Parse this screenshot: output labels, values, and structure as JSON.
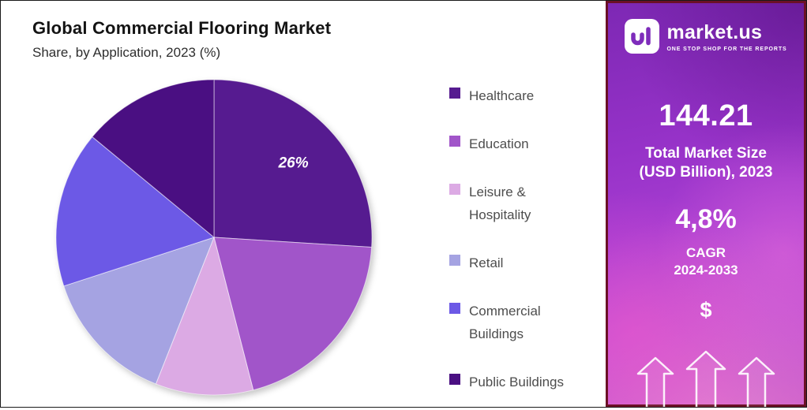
{
  "header": {
    "title": "Global Commercial Flooring Market",
    "subtitle": "Share, by Application, 2023 (%)"
  },
  "chart_data": {
    "type": "pie",
    "title": "Global Commercial Flooring Market",
    "subtitle": "Share, by Application, 2023 (%)",
    "labels": [
      "Healthcare",
      "Education",
      "Leisure & Hospitality",
      "Retail",
      "Commercial Buildings",
      "Public Buildings"
    ],
    "values": [
      26,
      20,
      10,
      14,
      16,
      14
    ],
    "colors": [
      "#561b90",
      "#a155c9",
      "#dcaae4",
      "#a5a3e2",
      "#6c59e6",
      "#4a0f82"
    ],
    "data_label": {
      "text": "26%",
      "slice_index": 0
    },
    "legend_position": "right",
    "start_angle": "top",
    "direction": "clockwise"
  },
  "panel": {
    "brand": "market.us",
    "tagline": "ONE STOP SHOP FOR THE REPORTS",
    "market_size_value": "144.21",
    "market_size_label_line1": "Total Market Size",
    "market_size_label_line2": "(USD Billion), 2023",
    "cagr_value": "4,8%",
    "cagr_label_line1": "CAGR",
    "cagr_label_line2": "2024-2033",
    "dollar_symbol": "$"
  },
  "colors": {
    "brand_purple": "#8e2ec4",
    "panel_border_maroon": "#6b1026",
    "accent_magenta": "#e152c9"
  }
}
